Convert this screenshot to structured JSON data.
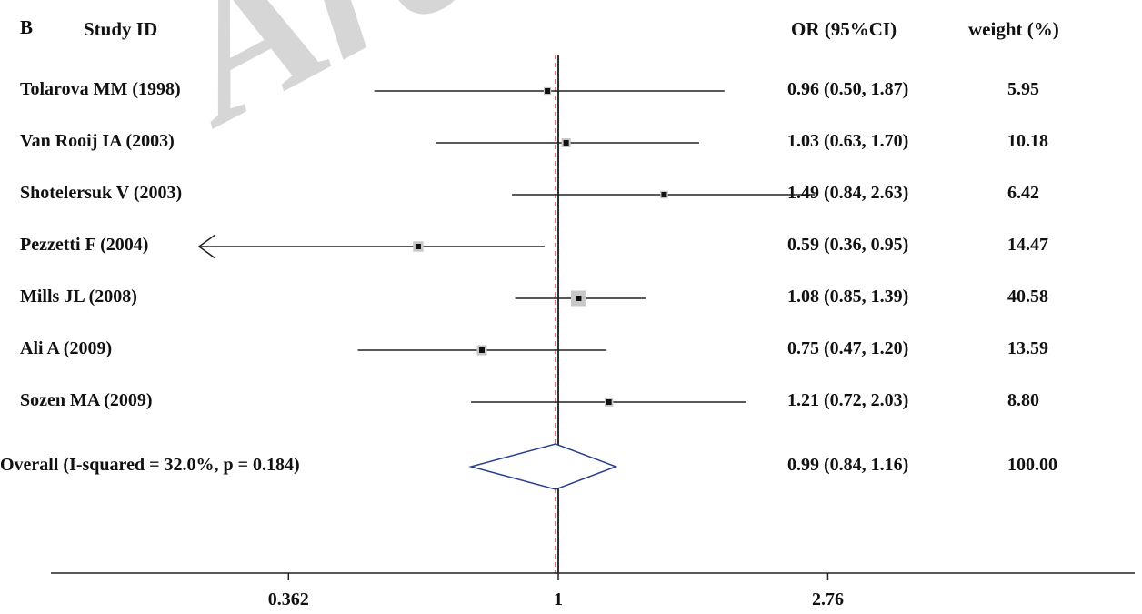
{
  "watermark": "Arch",
  "chart_data": {
    "type": "forest",
    "panel_label": "B",
    "columns": {
      "study": "Study ID",
      "effect": "OR (95%CI)",
      "weight": "weight (%)"
    },
    "x_scale": "log",
    "null_line": 1,
    "x_ticks": [
      {
        "value": 0.362,
        "label": "0.362"
      },
      {
        "value": 1,
        "label": "1"
      },
      {
        "value": 2.76,
        "label": "2.76"
      }
    ],
    "xlim": [
      0.16,
      7.6
    ],
    "pooled_estimate": 0.99,
    "studies": [
      {
        "name": "Tolarova MM (1998)",
        "or": 0.96,
        "lo": 0.5,
        "hi": 1.87,
        "or_text": "0.96 (0.50, 1.87)",
        "weight": 5.95,
        "weight_text": "5.95"
      },
      {
        "name": "Van Rooij IA (2003)",
        "or": 1.03,
        "lo": 0.63,
        "hi": 1.7,
        "or_text": "1.03 (0.63, 1.70)",
        "weight": 10.18,
        "weight_text": "10.18"
      },
      {
        "name": "Shotelersuk V (2003)",
        "or": 1.49,
        "lo": 0.84,
        "hi": 2.63,
        "or_text": "1.49 (0.84, 2.63)",
        "weight": 6.42,
        "weight_text": "6.42"
      },
      {
        "name": "Pezzetti F (2004)",
        "or": 0.59,
        "lo": 0.36,
        "hi": 0.95,
        "or_text": "0.59 (0.36, 0.95)",
        "weight": 14.47,
        "weight_text": "14.47",
        "arrow_left": true
      },
      {
        "name": "Mills JL (2008)",
        "or": 1.08,
        "lo": 0.85,
        "hi": 1.39,
        "or_text": "1.08 (0.85, 1.39)",
        "weight": 40.58,
        "weight_text": "40.58"
      },
      {
        "name": "Ali A (2009)",
        "or": 0.75,
        "lo": 0.47,
        "hi": 1.2,
        "or_text": "0.75 (0.47, 1.20)",
        "weight": 13.59,
        "weight_text": "13.59"
      },
      {
        "name": "Sozen MA (2009)",
        "or": 1.21,
        "lo": 0.72,
        "hi": 2.03,
        "or_text": "1.21 (0.72, 2.03)",
        "weight": 8.8,
        "weight_text": "8.80"
      }
    ],
    "overall": {
      "name": "Overall (I-squared = 32.0%, p = 0.184)",
      "or": 0.99,
      "lo": 0.84,
      "hi": 1.16,
      "or_text": "0.99 (0.84, 1.16)",
      "weight_text": "100.00"
    }
  }
}
